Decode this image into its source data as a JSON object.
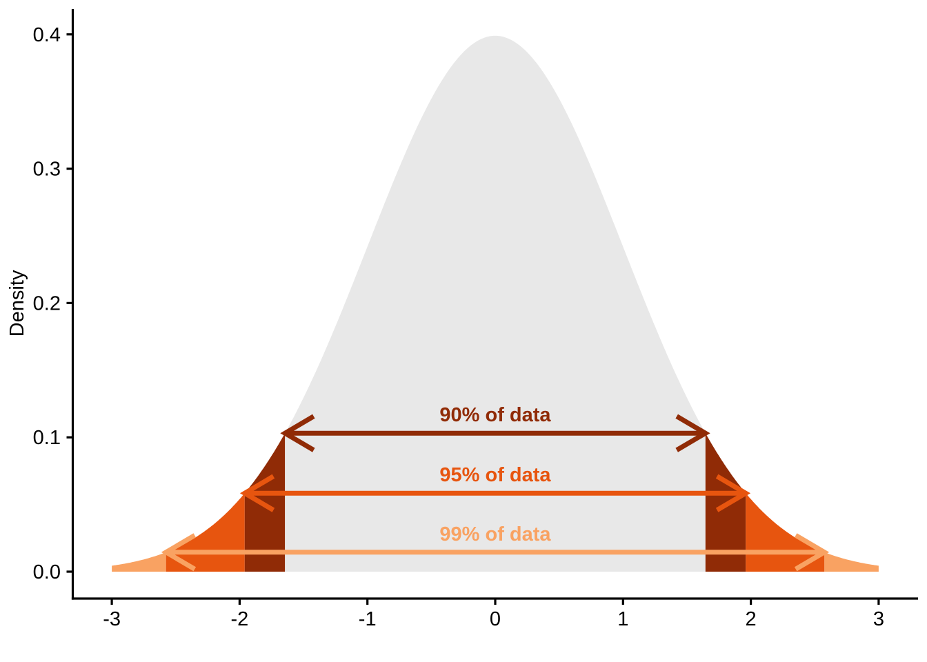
{
  "figure": {
    "background": "#FFFFFF"
  },
  "chart_data": {
    "type": "area",
    "title": "",
    "xlabel": "",
    "ylabel": "Density",
    "x_ticks": [
      -3,
      -2,
      -1,
      0,
      1,
      2,
      3
    ],
    "y_ticks": [
      "0.0",
      "0.1",
      "0.2",
      "0.3",
      "0.4"
    ],
    "xlim": [
      -3,
      3
    ],
    "ylim": [
      0,
      0.42
    ],
    "grid": "off",
    "legend": "none",
    "distribution": "standard normal density, mean 0, sd 1",
    "peak_density": 0.3989,
    "curve_fill": "#E8E8E8",
    "axis_color": "#000000",
    "tick_label_color": "#000000",
    "intervals": [
      {
        "label": "90% of data",
        "coverage": 0.9,
        "z_cutoff": 1.645,
        "density_at_cutoff": 0.1031,
        "color": "#902B06"
      },
      {
        "label": "95% of data",
        "coverage": 0.95,
        "z_cutoff": 1.96,
        "density_at_cutoff": 0.0584,
        "color": "#E7550F"
      },
      {
        "label": "99% of data",
        "coverage": 0.99,
        "z_cutoff": 2.576,
        "density_at_cutoff": 0.0145,
        "color": "#F9A262"
      }
    ]
  }
}
